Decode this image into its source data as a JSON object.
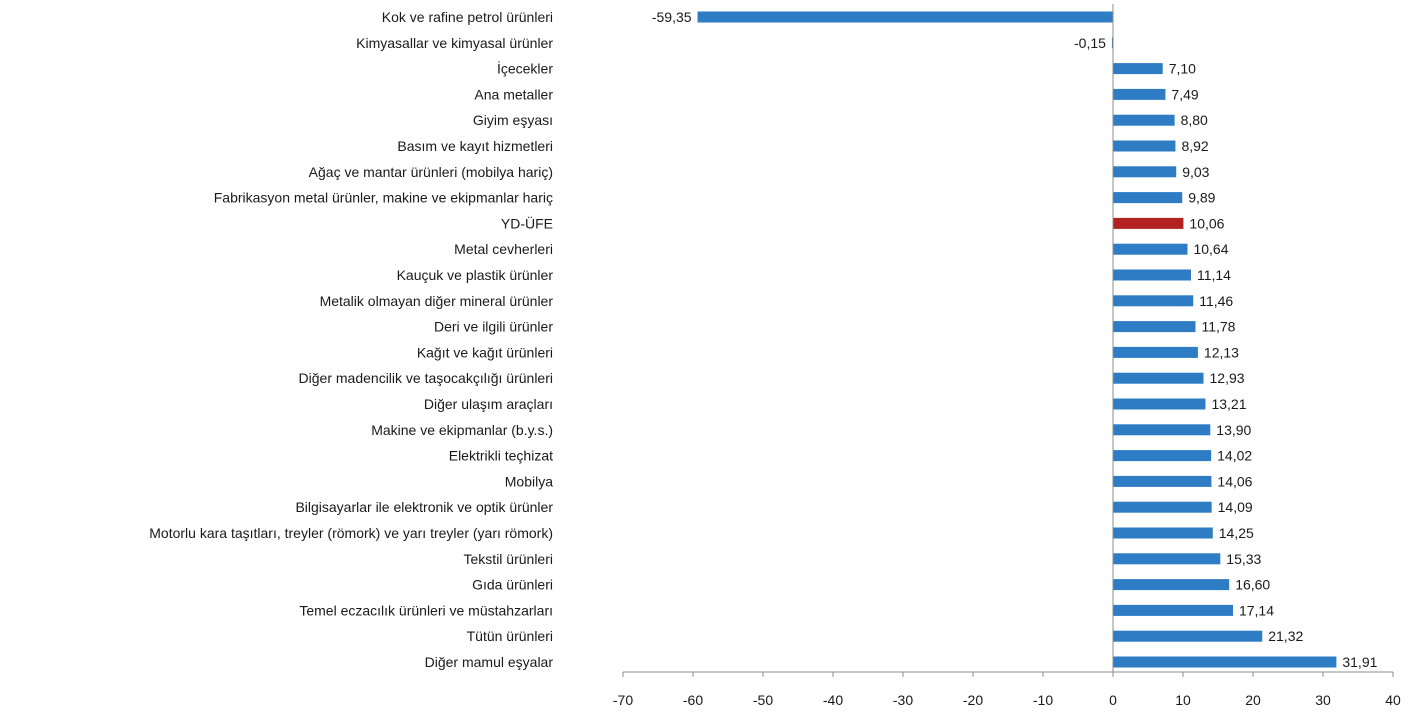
{
  "chart_data": {
    "type": "bar",
    "orientation": "horizontal",
    "title": "",
    "xlabel": "",
    "ylabel": "",
    "xlim": [
      -70,
      40
    ],
    "x_ticks": [
      "-70",
      "-60",
      "-50",
      "-40",
      "-30",
      "-20",
      "-10",
      "0",
      "10",
      "20",
      "30",
      "40"
    ],
    "grid": false,
    "legend": "none",
    "bar_color": "#2E7CC4",
    "highlight_color": "#B22222",
    "highlight_category": "YD-ÜFE",
    "categories": [
      "Kok ve rafine petrol ürünleri",
      "Kimyasallar ve kimyasal ürünler",
      "İçecekler",
      "Ana metaller",
      "Giyim eşyası",
      "Basım ve kayıt hizmetleri",
      "Ağaç ve mantar ürünleri (mobilya hariç)",
      "Fabrikasyon metal ürünler, makine ve ekipmanlar hariç",
      "YD-ÜFE",
      "Metal cevherleri",
      "Kauçuk ve plastik ürünler",
      "Metalik olmayan diğer mineral ürünler",
      "Deri ve ilgili ürünler",
      "Kağıt ve kağıt ürünleri",
      "Diğer madencilik ve taşocakçılığı ürünleri",
      "Diğer ulaşım araçları",
      "Makine ve ekipmanlar (b.y.s.)",
      "Elektrikli teçhizat",
      "Mobilya",
      "Bilgisayarlar ile elektronik ve optik ürünler",
      "Motorlu kara taşıtları, treyler (römork) ve yarı treyler (yarı römork)",
      "Tekstil ürünleri",
      "Gıda ürünleri",
      "Temel eczacılık ürünleri ve müstahzarları",
      "Tütün ürünleri",
      "Diğer mamul eşyalar"
    ],
    "values": [
      -59.35,
      -0.15,
      7.1,
      7.49,
      8.8,
      8.92,
      9.03,
      9.89,
      10.06,
      10.64,
      11.14,
      11.46,
      11.78,
      12.13,
      12.93,
      13.21,
      13.9,
      14.02,
      14.06,
      14.09,
      14.25,
      15.33,
      16.6,
      17.14,
      21.32,
      31.91
    ],
    "value_labels": [
      "-59,35",
      "-0,15",
      "7,10",
      "7,49",
      "8,80",
      "8,92",
      "9,03",
      "9,89",
      "10,06",
      "10,64",
      "11,14",
      "11,46",
      "11,78",
      "12,13",
      "12,93",
      "13,21",
      "13,90",
      "14,02",
      "14,06",
      "14,09",
      "14,25",
      "15,33",
      "16,60",
      "17,14",
      "21,32",
      "31,91"
    ]
  }
}
